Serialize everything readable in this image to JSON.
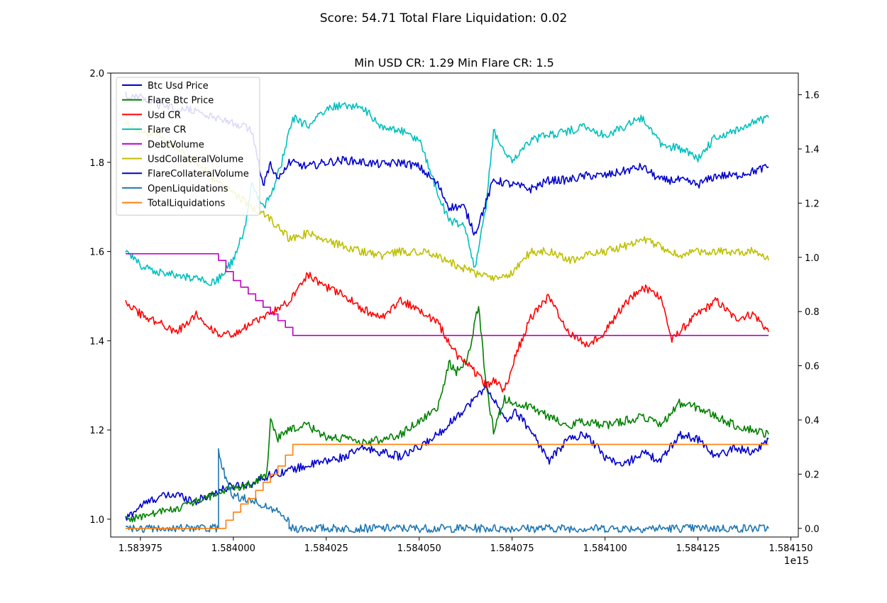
{
  "figure": {
    "suptitle": "Score: 54.71 Total Flare Liquidation: 0.02",
    "axes_title": "Min USD CR: 1.29 Min Flare CR: 1.5",
    "x_offset_label": "1e15"
  },
  "chart_data": {
    "type": "line",
    "x_unit": "microseconds since epoch (axis multiplier 1e15)",
    "xlim": [
      1.583967,
      1.584152
    ],
    "x_start": 1.583971,
    "x_end": 1.584144,
    "x_ticks": [
      "1.583975",
      "1.584000",
      "1.584025",
      "1.584050",
      "1.584075",
      "1.584100",
      "1.584125",
      "1.584150"
    ],
    "left_axis": {
      "ylim": [
        0.96,
        2.0
      ],
      "ticks": [
        "1.0",
        "1.2",
        "1.4",
        "1.6",
        "1.8",
        "2.0"
      ]
    },
    "right_axis": {
      "ylim": [
        -0.032,
        1.68
      ],
      "ticks": [
        "0.0",
        "0.2",
        "0.4",
        "0.6",
        "0.8",
        "1.0",
        "1.2",
        "1.4",
        "1.6"
      ]
    },
    "grid": false,
    "legend_position": "upper-left",
    "series": [
      {
        "name": "Btc Usd Price",
        "color": "#0000cc",
        "axis": "left",
        "style": "noisy",
        "x": [
          1.583971,
          1.583975,
          1.58398,
          1.583985,
          1.58399,
          1.583995,
          1.584,
          1.584005,
          1.58401,
          1.584015,
          1.58402,
          1.584025,
          1.58403,
          1.584035,
          1.58404,
          1.584045,
          1.58405,
          1.584055,
          1.58406,
          1.584065,
          1.584068,
          1.58407,
          1.584073,
          1.584076,
          1.58408,
          1.584085,
          1.58409,
          1.584095,
          1.5841,
          1.584105,
          1.58411,
          1.584115,
          1.58412,
          1.584125,
          1.58413,
          1.584135,
          1.58414,
          1.584144
        ],
        "y": [
          1.0,
          1.03,
          1.05,
          1.055,
          1.04,
          1.06,
          1.075,
          1.08,
          1.1,
          1.11,
          1.12,
          1.13,
          1.14,
          1.16,
          1.15,
          1.14,
          1.16,
          1.19,
          1.23,
          1.27,
          1.3,
          1.27,
          1.22,
          1.24,
          1.2,
          1.13,
          1.18,
          1.19,
          1.14,
          1.12,
          1.15,
          1.13,
          1.19,
          1.18,
          1.14,
          1.16,
          1.15,
          1.18
        ]
      },
      {
        "name": "Flare Btc Price",
        "color": "#008000",
        "axis": "left",
        "style": "noisy",
        "x": [
          1.583971,
          1.583975,
          1.58398,
          1.583985,
          1.58399,
          1.583995,
          1.584,
          1.584005,
          1.584009,
          1.58401,
          1.584012,
          1.584015,
          1.58402,
          1.584025,
          1.58403,
          1.584035,
          1.58404,
          1.584045,
          1.58405,
          1.584055,
          1.584058,
          1.58406,
          1.584063,
          1.584066,
          1.584068,
          1.58407,
          1.584073,
          1.584076,
          1.58408,
          1.584085,
          1.58409,
          1.584095,
          1.5841,
          1.584105,
          1.58411,
          1.584115,
          1.58412,
          1.584125,
          1.58413,
          1.584135,
          1.58414,
          1.584144
        ],
        "y": [
          1.0,
          1.005,
          1.015,
          1.025,
          1.04,
          1.055,
          1.07,
          1.08,
          1.1,
          1.23,
          1.18,
          1.2,
          1.21,
          1.185,
          1.18,
          1.17,
          1.18,
          1.19,
          1.22,
          1.25,
          1.35,
          1.33,
          1.36,
          1.48,
          1.3,
          1.2,
          1.27,
          1.26,
          1.25,
          1.23,
          1.21,
          1.22,
          1.21,
          1.22,
          1.23,
          1.21,
          1.26,
          1.25,
          1.23,
          1.21,
          1.2,
          1.19
        ]
      },
      {
        "name": "Usd CR",
        "color": "#ff0000",
        "axis": "left",
        "style": "noisy",
        "x": [
          1.583971,
          1.583975,
          1.58398,
          1.583985,
          1.58399,
          1.583995,
          1.584,
          1.584005,
          1.58401,
          1.584015,
          1.58402,
          1.584025,
          1.58403,
          1.584035,
          1.58404,
          1.584045,
          1.58405,
          1.584055,
          1.58406,
          1.584065,
          1.584068,
          1.58407,
          1.584073,
          1.584076,
          1.58408,
          1.584085,
          1.58409,
          1.584095,
          1.5841,
          1.584105,
          1.58411,
          1.584115,
          1.584118,
          1.58412,
          1.584125,
          1.58413,
          1.584135,
          1.58414,
          1.584144
        ],
        "y": [
          1.49,
          1.46,
          1.44,
          1.42,
          1.46,
          1.42,
          1.41,
          1.44,
          1.46,
          1.49,
          1.55,
          1.52,
          1.5,
          1.47,
          1.45,
          1.49,
          1.47,
          1.44,
          1.37,
          1.33,
          1.3,
          1.31,
          1.29,
          1.37,
          1.45,
          1.5,
          1.42,
          1.39,
          1.42,
          1.48,
          1.52,
          1.5,
          1.4,
          1.42,
          1.46,
          1.49,
          1.45,
          1.46,
          1.42
        ]
      },
      {
        "name": "Flare CR",
        "color": "#00bfbf",
        "axis": "left",
        "style": "noisy",
        "x": [
          1.583971,
          1.583975,
          1.58398,
          1.583985,
          1.58399,
          1.583995,
          1.584,
          1.584003,
          1.584005,
          1.584008,
          1.58401,
          1.584013,
          1.584016,
          1.58402,
          1.584025,
          1.58403,
          1.584035,
          1.58404,
          1.584045,
          1.58405,
          1.584055,
          1.584058,
          1.584062,
          1.584065,
          1.584068,
          1.58407,
          1.584075,
          1.58408,
          1.584085,
          1.58409,
          1.584095,
          1.5841,
          1.584105,
          1.58411,
          1.584115,
          1.58412,
          1.584125,
          1.58413,
          1.584135,
          1.58414,
          1.584144
        ],
        "y": [
          1.6,
          1.57,
          1.555,
          1.545,
          1.54,
          1.53,
          1.58,
          1.65,
          1.75,
          1.7,
          1.72,
          1.8,
          1.9,
          1.88,
          1.92,
          1.93,
          1.92,
          1.88,
          1.87,
          1.85,
          1.73,
          1.67,
          1.66,
          1.56,
          1.7,
          1.87,
          1.8,
          1.85,
          1.86,
          1.87,
          1.88,
          1.86,
          1.88,
          1.9,
          1.84,
          1.83,
          1.81,
          1.86,
          1.87,
          1.89,
          1.9
        ]
      },
      {
        "name": "DebtVolume",
        "color": "#bf00bf",
        "axis": "left",
        "style": "step",
        "x": [
          1.583971,
          1.583996,
          1.583998,
          1.584,
          1.584002,
          1.584004,
          1.584006,
          1.584008,
          1.58401,
          1.584012,
          1.584014,
          1.584016,
          1.584144
        ],
        "y": [
          1.595,
          1.58,
          1.555,
          1.535,
          1.52,
          1.505,
          1.49,
          1.475,
          1.46,
          1.445,
          1.43,
          1.412,
          1.412
        ]
      },
      {
        "name": "UsdCollateralVolume",
        "color": "#bfbf00",
        "axis": "left",
        "style": "noisy",
        "x": [
          1.583971,
          1.583975,
          1.58398,
          1.583985,
          1.58399,
          1.583995,
          1.584,
          1.584005,
          1.58401,
          1.584015,
          1.58402,
          1.584025,
          1.58403,
          1.584035,
          1.58404,
          1.584045,
          1.58405,
          1.584055,
          1.58406,
          1.584065,
          1.58407,
          1.584075,
          1.58408,
          1.584085,
          1.58409,
          1.584095,
          1.5841,
          1.584105,
          1.58411,
          1.584115,
          1.58412,
          1.584125,
          1.58413,
          1.584135,
          1.58414,
          1.584144
        ],
        "y": [
          1.89,
          1.87,
          1.86,
          1.83,
          1.8,
          1.76,
          1.73,
          1.7,
          1.67,
          1.63,
          1.64,
          1.625,
          1.61,
          1.6,
          1.59,
          1.6,
          1.6,
          1.59,
          1.57,
          1.55,
          1.54,
          1.55,
          1.6,
          1.6,
          1.58,
          1.59,
          1.6,
          1.61,
          1.63,
          1.61,
          1.59,
          1.6,
          1.6,
          1.6,
          1.6,
          1.58
        ]
      },
      {
        "name": "FlareCollateralVolume",
        "color": "#0000cc",
        "axis": "left",
        "style": "noisy",
        "x": [
          1.583971,
          1.583975,
          1.58398,
          1.583985,
          1.58399,
          1.583995,
          1.584,
          1.584005,
          1.584008,
          1.58401,
          1.584012,
          1.584015,
          1.58402,
          1.584025,
          1.58403,
          1.584035,
          1.58404,
          1.584045,
          1.58405,
          1.584055,
          1.584058,
          1.584062,
          1.584065,
          1.584068,
          1.58407,
          1.584075,
          1.58408,
          1.584085,
          1.58409,
          1.584095,
          1.5841,
          1.584105,
          1.58411,
          1.584115,
          1.58412,
          1.584125,
          1.58413,
          1.584135,
          1.58414,
          1.584144
        ],
        "y": [
          1.95,
          1.945,
          1.93,
          1.92,
          1.915,
          1.9,
          1.89,
          1.87,
          1.75,
          1.8,
          1.76,
          1.8,
          1.79,
          1.8,
          1.805,
          1.8,
          1.795,
          1.8,
          1.79,
          1.75,
          1.7,
          1.7,
          1.64,
          1.71,
          1.76,
          1.75,
          1.74,
          1.76,
          1.76,
          1.77,
          1.77,
          1.78,
          1.79,
          1.76,
          1.76,
          1.75,
          1.77,
          1.77,
          1.78,
          1.79
        ]
      },
      {
        "name": "OpenLiquidations",
        "color": "#1f77b4",
        "axis": "right",
        "style": "noisy",
        "x": [
          1.583971,
          1.583996,
          1.583996,
          1.583998,
          1.584,
          1.584003,
          1.584006,
          1.584009,
          1.584012,
          1.584015,
          1.584015,
          1.584144
        ],
        "y": [
          0.0,
          0.0,
          0.28,
          0.18,
          0.12,
          0.11,
          0.1,
          0.08,
          0.06,
          0.03,
          0.0,
          0.0
        ]
      },
      {
        "name": "TotalLiquidations",
        "color": "#ff7f0e",
        "axis": "right",
        "style": "step",
        "x": [
          1.583971,
          1.583996,
          1.583998,
          1.584,
          1.584002,
          1.584004,
          1.584006,
          1.584008,
          1.58401,
          1.584012,
          1.584014,
          1.584016,
          1.584144
        ],
        "y": [
          0.0,
          0.0,
          0.03,
          0.06,
          0.09,
          0.11,
          0.14,
          0.17,
          0.2,
          0.23,
          0.27,
          0.31,
          0.31
        ]
      }
    ]
  }
}
